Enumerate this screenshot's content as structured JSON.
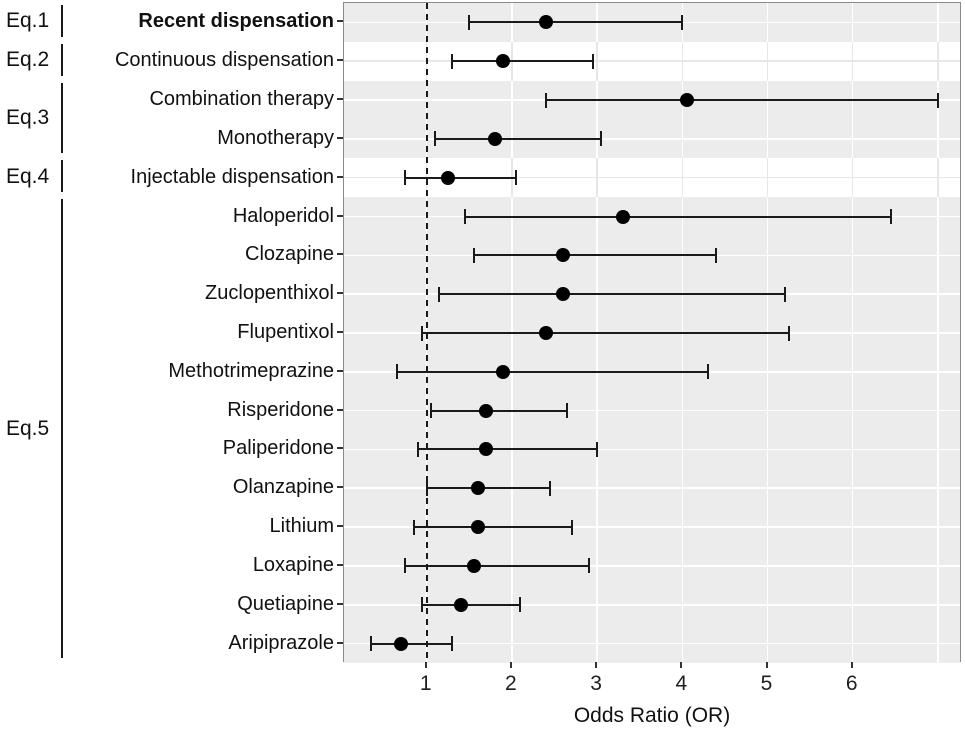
{
  "chart_data": {
    "type": "forest",
    "xlabel": "Odds Ratio (OR)",
    "x_ticks": [
      1,
      2,
      3,
      4,
      5,
      6
    ],
    "x_gridlines": [
      1,
      2,
      3,
      4,
      5,
      6,
      7
    ],
    "x_range": [
      0.03,
      7.28
    ],
    "reference_line_x": 1,
    "legend": "none",
    "groups": [
      {
        "label": "Eq.1",
        "shaded": true,
        "rows": [
          {
            "label": "Recent dispensation",
            "bold": true,
            "or": 2.4,
            "ci_low": 1.5,
            "ci_high": 4.0
          }
        ]
      },
      {
        "label": "Eq.2",
        "shaded": false,
        "rows": [
          {
            "label": "Continuous dispensation",
            "bold": false,
            "or": 1.9,
            "ci_low": 1.3,
            "ci_high": 2.95
          }
        ]
      },
      {
        "label": "Eq.3",
        "shaded": true,
        "rows": [
          {
            "label": "Combination therapy",
            "bold": false,
            "or": 4.05,
            "ci_low": 2.4,
            "ci_high": 7.0
          },
          {
            "label": "Monotherapy",
            "bold": false,
            "or": 1.8,
            "ci_low": 1.1,
            "ci_high": 3.05
          }
        ]
      },
      {
        "label": "Eq.4",
        "shaded": false,
        "rows": [
          {
            "label": "Injectable dispensation",
            "bold": false,
            "or": 1.25,
            "ci_low": 0.75,
            "ci_high": 2.05
          }
        ]
      },
      {
        "label": "Eq.5",
        "shaded": true,
        "rows": [
          {
            "label": "Haloperidol",
            "bold": false,
            "or": 3.3,
            "ci_low": 1.45,
            "ci_high": 6.45
          },
          {
            "label": "Clozapine",
            "bold": false,
            "or": 2.6,
            "ci_low": 1.55,
            "ci_high": 4.4
          },
          {
            "label": "Zuclopenthixol",
            "bold": false,
            "or": 2.6,
            "ci_low": 1.15,
            "ci_high": 5.2
          },
          {
            "label": "Flupentixol",
            "bold": false,
            "or": 2.4,
            "ci_low": 0.95,
            "ci_high": 5.25
          },
          {
            "label": "Methotrimeprazine",
            "bold": false,
            "or": 1.9,
            "ci_low": 0.65,
            "ci_high": 4.3
          },
          {
            "label": "Risperidone",
            "bold": false,
            "or": 1.7,
            "ci_low": 1.05,
            "ci_high": 2.65
          },
          {
            "label": "Paliperidone",
            "bold": false,
            "or": 1.7,
            "ci_low": 0.9,
            "ci_high": 3.0
          },
          {
            "label": "Olanzapine",
            "bold": false,
            "or": 1.6,
            "ci_low": 1.0,
            "ci_high": 2.45
          },
          {
            "label": "Lithium",
            "bold": false,
            "or": 1.6,
            "ci_low": 0.85,
            "ci_high": 2.7
          },
          {
            "label": "Loxapine",
            "bold": false,
            "or": 1.55,
            "ci_low": 0.75,
            "ci_high": 2.9
          },
          {
            "label": "Quetiapine",
            "bold": false,
            "or": 1.4,
            "ci_low": 0.95,
            "ci_high": 2.1
          },
          {
            "label": "Aripiprazole",
            "bold": false,
            "or": 0.7,
            "ci_low": 0.35,
            "ci_high": 1.3
          }
        ]
      }
    ],
    "colors": {
      "band_gray": "#ececec",
      "band_white": "#ffffff",
      "gridline_on_gray": "#ffffff",
      "gridline_on_white": "#e7e7e7",
      "point": "#000000",
      "error_bar": "#1a1a1a",
      "reference_line": "#1a1a1a",
      "axis_text": "#1f1f1f",
      "panel_border": "#8a8a8a"
    }
  }
}
